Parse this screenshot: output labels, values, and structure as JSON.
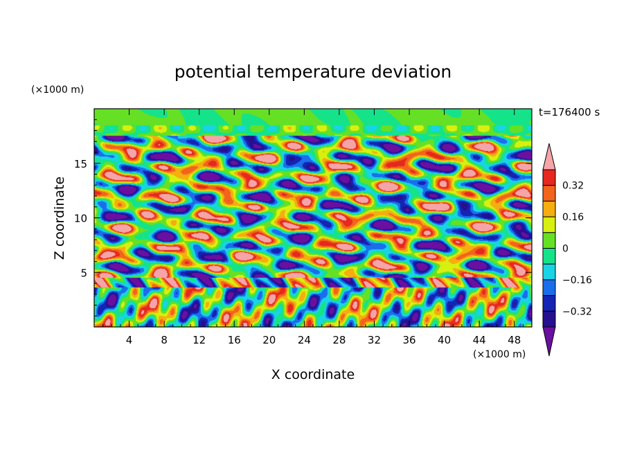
{
  "chart_data": {
    "type": "heatmap",
    "title": "potential temperature deviation",
    "time_label": "t=176400 s",
    "xlabel": "X coordinate",
    "ylabel": "Z coordinate",
    "x_unit": "(×1000 m)",
    "y_unit": "(×1000 m)",
    "xlim": [
      0,
      50
    ],
    "ylim": [
      0,
      20
    ],
    "x_ticks": [
      4,
      8,
      12,
      16,
      20,
      24,
      28,
      32,
      36,
      40,
      44,
      48
    ],
    "y_ticks": [
      5,
      10,
      15
    ],
    "colorbar": {
      "levels": [
        -0.4,
        -0.32,
        -0.24,
        -0.16,
        -0.08,
        0,
        0.08,
        0.16,
        0.24,
        0.32,
        0.4
      ],
      "labeled_levels": [
        0.32,
        0.16,
        0,
        -0.16,
        -0.32
      ],
      "label_texts": [
        "0.32",
        "0.16",
        "0",
        "−0.16",
        "−0.32"
      ],
      "colors": [
        "#6a0fa0",
        "#26108f",
        "#1424b4",
        "#1a6eeb",
        "#19d4e6",
        "#14e38a",
        "#66e024",
        "#d8f010",
        "#f5ad10",
        "#f2641c",
        "#e6281e",
        "#f5a5a8"
      ],
      "extend": "both"
    }
  }
}
